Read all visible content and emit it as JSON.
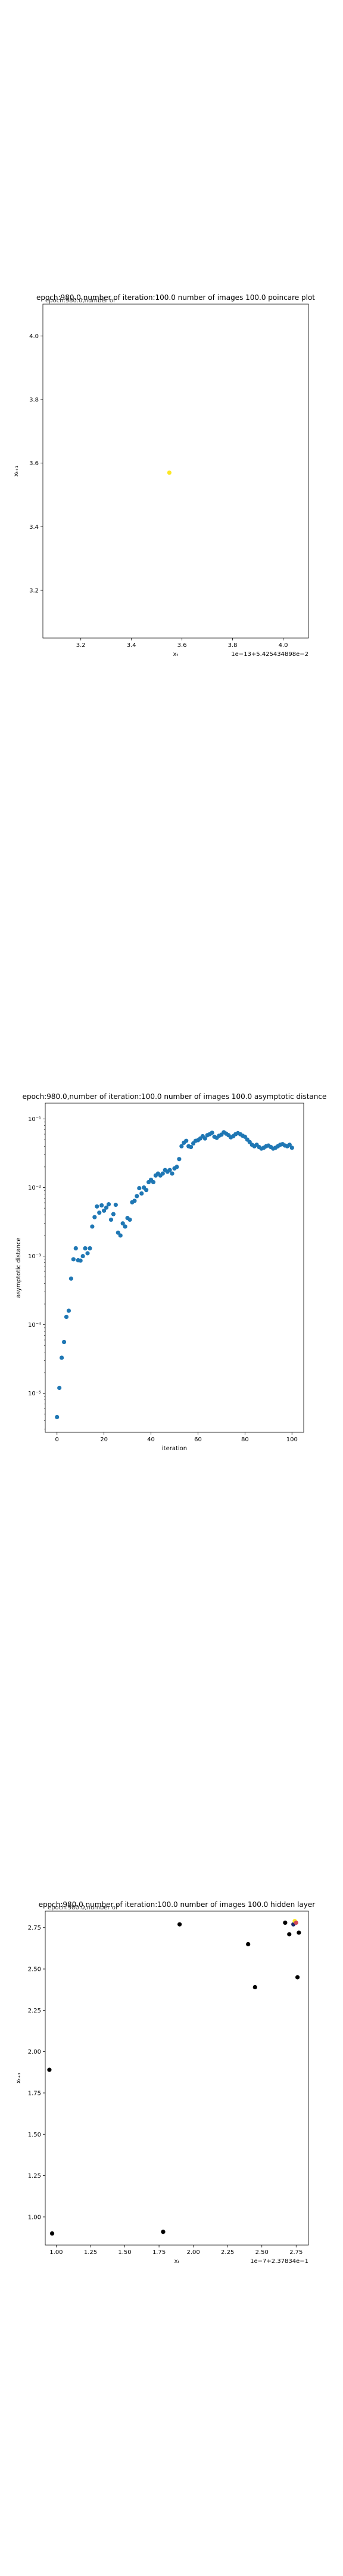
{
  "chart_data": [
    {
      "type": "scatter",
      "title": "epoch:980.0,number of iteration:100.0  number of images 100.0 poincare plot",
      "overlay_text": "epoch:980.0,number of",
      "xlabel": "xₜ",
      "ylabel": "xₜ₊₁",
      "offset_text": "1e−13+5.425434898e−2",
      "xlim": [
        3.05,
        4.1
      ],
      "ylim": [
        3.05,
        4.1
      ],
      "xticks": [
        3.2,
        3.4,
        3.6,
        3.8,
        4.0
      ],
      "xtick_labels": [
        "3.2",
        "3.4",
        "3.6",
        "3.8",
        "4.0"
      ],
      "yticks": [
        3.2,
        3.4,
        3.6,
        3.8,
        4.0
      ],
      "ytick_labels": [
        "3.2",
        "3.4",
        "3.6",
        "3.8",
        "4.0"
      ],
      "points": [
        {
          "x": 3.55,
          "y": 3.57,
          "color": "#fde725"
        }
      ]
    },
    {
      "type": "scatter",
      "title": "epoch:980.0,number of iteration:100.0  number of images 100.0 asymptotic distance",
      "xlabel": "iteration",
      "ylabel": "asymptotic distance",
      "log_y": true,
      "xlim": [
        -5,
        105
      ],
      "ylim": [
        2.7e-06,
        0.17
      ],
      "xticks": [
        0,
        20,
        40,
        60,
        80,
        100
      ],
      "xtick_labels": [
        "0",
        "20",
        "40",
        "60",
        "80",
        "100"
      ],
      "yticks": [
        1e-05,
        0.0001,
        0.001,
        0.01,
        0.1
      ],
      "ytick_labels": [
        "10⁻⁵",
        "10⁻⁴",
        "10⁻³",
        "10⁻²",
        "10⁻¹"
      ],
      "color": "#1f77b4",
      "x": [
        0,
        1,
        2,
        3,
        4,
        5,
        6,
        7,
        8,
        9,
        10,
        11,
        12,
        13,
        14,
        15,
        16,
        17,
        18,
        19,
        20,
        21,
        22,
        23,
        24,
        25,
        26,
        27,
        28,
        29,
        30,
        31,
        32,
        33,
        34,
        35,
        36,
        37,
        38,
        39,
        40,
        41,
        42,
        43,
        44,
        45,
        46,
        47,
        48,
        49,
        50,
        51,
        52,
        53,
        54,
        55,
        56,
        57,
        58,
        59,
        60,
        61,
        62,
        63,
        64,
        65,
        66,
        67,
        68,
        69,
        70,
        71,
        72,
        73,
        74,
        75,
        76,
        77,
        78,
        79,
        80,
        81,
        82,
        83,
        84,
        85,
        86,
        87,
        88,
        89,
        90,
        91,
        92,
        93,
        94,
        95,
        96,
        97,
        98,
        99,
        100
      ],
      "y": [
        4.5e-06,
        1.2e-05,
        3.3e-05,
        5.6e-05,
        0.00013,
        0.00016,
        0.00047,
        0.0009,
        0.0013,
        0.00087,
        0.00086,
        0.001,
        0.0013,
        0.0011,
        0.0013,
        0.0027,
        0.0037,
        0.0053,
        0.0043,
        0.0055,
        0.0046,
        0.0051,
        0.0057,
        0.0034,
        0.0041,
        0.0056,
        0.0022,
        0.002,
        0.003,
        0.0027,
        0.0036,
        0.0034,
        0.0061,
        0.0064,
        0.0075,
        0.0098,
        0.0082,
        0.01,
        0.0092,
        0.012,
        0.013,
        0.012,
        0.015,
        0.016,
        0.015,
        0.016,
        0.018,
        0.017,
        0.018,
        0.016,
        0.019,
        0.02,
        0.026,
        0.04,
        0.045,
        0.048,
        0.04,
        0.039,
        0.044,
        0.048,
        0.049,
        0.052,
        0.056,
        0.052,
        0.058,
        0.06,
        0.063,
        0.055,
        0.053,
        0.057,
        0.059,
        0.064,
        0.061,
        0.058,
        0.054,
        0.056,
        0.06,
        0.062,
        0.06,
        0.057,
        0.055,
        0.05,
        0.046,
        0.042,
        0.04,
        0.042,
        0.039,
        0.037,
        0.038,
        0.04,
        0.041,
        0.039,
        0.037,
        0.038,
        0.04,
        0.042,
        0.043,
        0.041,
        0.04,
        0.042,
        0.038
      ]
    },
    {
      "type": "scatter",
      "title": "epoch:980.0,number of iteration:100.0  number of images 100.0 hidden layer",
      "overlay_text": "epoch:980.0,number of",
      "xlabel": "xₜ",
      "ylabel": "xₜ₊₁",
      "offset_text": "1e−7+2.37834e−1",
      "xlim": [
        0.92,
        2.84
      ],
      "ylim": [
        0.83,
        2.85
      ],
      "xticks": [
        1.0,
        1.25,
        1.5,
        1.75,
        2.0,
        2.25,
        2.5,
        2.75
      ],
      "xtick_labels": [
        "1.00",
        "1.25",
        "1.50",
        "1.75",
        "2.00",
        "2.25",
        "2.50",
        "2.75"
      ],
      "yticks": [
        1.0,
        1.25,
        1.5,
        1.75,
        2.0,
        2.25,
        2.5,
        2.75
      ],
      "ytick_labels": [
        "1.00",
        "1.25",
        "1.50",
        "1.75",
        "2.00",
        "2.25",
        "2.50",
        "2.75"
      ],
      "points": [
        {
          "x": 0.95,
          "y": 1.89,
          "color": "#000000"
        },
        {
          "x": 0.97,
          "y": 0.9,
          "color": "#000000"
        },
        {
          "x": 1.78,
          "y": 0.91,
          "color": "#000000"
        },
        {
          "x": 1.9,
          "y": 2.77,
          "color": "#000000"
        },
        {
          "x": 2.4,
          "y": 2.65,
          "color": "#000000"
        },
        {
          "x": 2.45,
          "y": 2.39,
          "color": "#000000"
        },
        {
          "x": 2.67,
          "y": 2.78,
          "color": "#000000"
        },
        {
          "x": 2.7,
          "y": 2.71,
          "color": "#000000"
        },
        {
          "x": 2.73,
          "y": 2.77,
          "color": "#1f2a6b"
        },
        {
          "x": 2.74,
          "y": 2.79,
          "color": "#fde725"
        },
        {
          "x": 2.75,
          "y": 2.78,
          "color": "#d1495b"
        },
        {
          "x": 2.76,
          "y": 2.45,
          "color": "#000000"
        },
        {
          "x": 2.77,
          "y": 2.72,
          "color": "#000000"
        }
      ]
    }
  ]
}
